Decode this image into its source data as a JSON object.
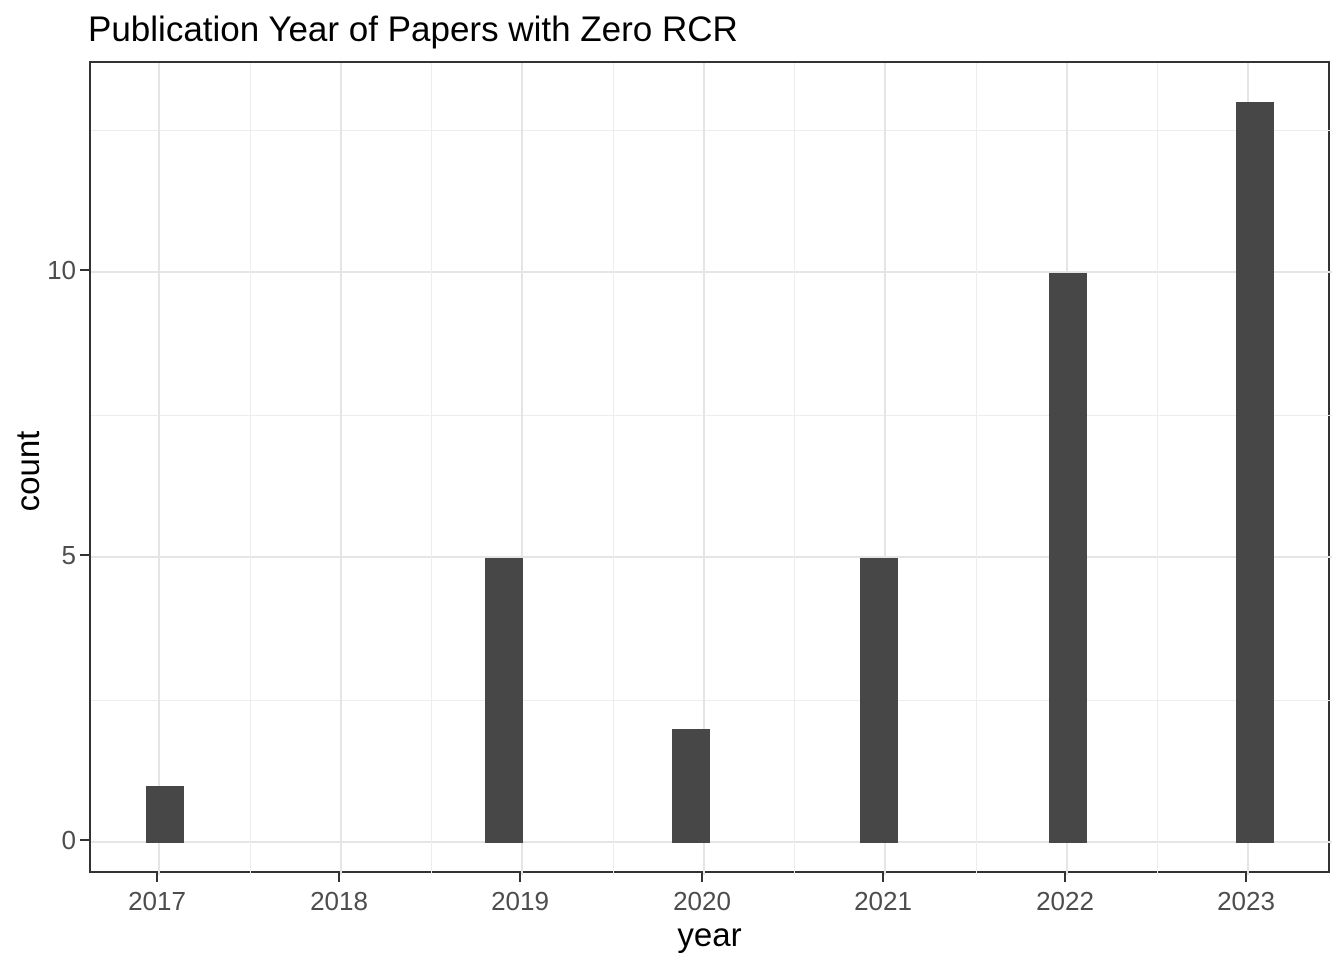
{
  "chart_data": {
    "type": "bar",
    "title": "Publication Year of Papers with Zero RCR",
    "xlabel": "year",
    "ylabel": "count",
    "categories": [
      "2017",
      "2018",
      "2019",
      "2020",
      "2021",
      "2022",
      "2023"
    ],
    "values": [
      1,
      0,
      5,
      2,
      5,
      10,
      13
    ],
    "y_major_ticks": [
      0,
      5,
      10
    ],
    "y_tick_labels": [
      "0",
      "5",
      "10"
    ],
    "y_minor_gridlines": [
      2.5,
      7.5,
      12.5
    ],
    "ylim": [
      0,
      13.7
    ],
    "grid": "major-and-minor",
    "legend": "none",
    "panel_border": true,
    "colors": {
      "bar_fill": "#474747",
      "grid_major": "#e5e5e5",
      "grid_minor": "#ededed",
      "panel_border": "#333333",
      "tick_mark": "#333333",
      "tick_label_text": "#4d4d4d",
      "title_text": "#000000",
      "axis_title_text": "#000000",
      "background": "#ffffff"
    }
  }
}
